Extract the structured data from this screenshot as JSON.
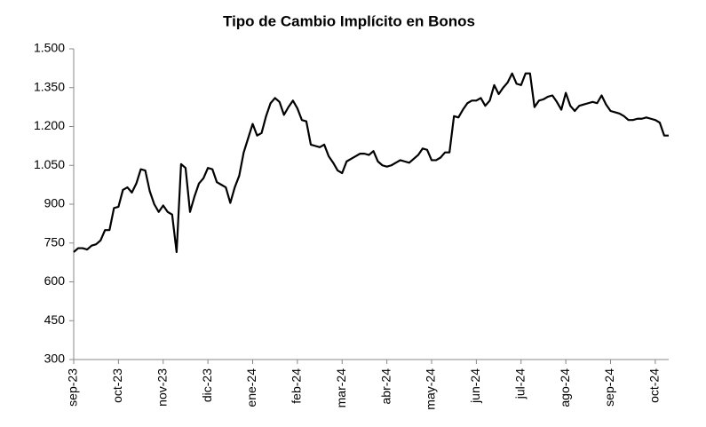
{
  "chart_data": {
    "type": "line",
    "title": "Tipo de Cambio Implícito en Bonos",
    "categories": [
      "sep-23",
      null,
      null,
      null,
      null,
      null,
      null,
      null,
      null,
      null,
      "oct-23",
      null,
      null,
      null,
      null,
      null,
      null,
      null,
      null,
      null,
      "nov-23",
      null,
      null,
      null,
      null,
      null,
      null,
      null,
      null,
      null,
      "dic-23",
      null,
      null,
      null,
      null,
      null,
      null,
      null,
      null,
      null,
      "ene-24",
      null,
      null,
      null,
      null,
      null,
      null,
      null,
      null,
      null,
      "feb-24",
      null,
      null,
      null,
      null,
      null,
      null,
      null,
      null,
      null,
      "mar-24",
      null,
      null,
      null,
      null,
      null,
      null,
      null,
      null,
      null,
      "abr-24",
      null,
      null,
      null,
      null,
      null,
      null,
      null,
      null,
      null,
      "may-24",
      null,
      null,
      null,
      null,
      null,
      null,
      null,
      null,
      null,
      "jun-24",
      null,
      null,
      null,
      null,
      null,
      null,
      null,
      null,
      null,
      "jul-24",
      null,
      null,
      null,
      null,
      null,
      null,
      null,
      null,
      null,
      "ago-24",
      null,
      null,
      null,
      null,
      null,
      null,
      null,
      null,
      null,
      "sep-24",
      null,
      null,
      null,
      null,
      null,
      null,
      null,
      null,
      null,
      "oct-24",
      null,
      null,
      null
    ],
    "series": [
      {
        "name": "Tipo de Cambio Implícito",
        "color": "#000000",
        "values": [
          715,
          730,
          730,
          725,
          740,
          745,
          760,
          800,
          800,
          885,
          890,
          955,
          965,
          945,
          980,
          1035,
          1030,
          950,
          900,
          870,
          895,
          870,
          860,
          715,
          1055,
          1040,
          870,
          930,
          980,
          1000,
          1040,
          1035,
          985,
          975,
          965,
          905,
          965,
          1010,
          1100,
          1155,
          1210,
          1165,
          1175,
          1240,
          1290,
          1310,
          1295,
          1245,
          1275,
          1300,
          1270,
          1225,
          1220,
          1130,
          1125,
          1120,
          1130,
          1085,
          1060,
          1030,
          1020,
          1065,
          1075,
          1085,
          1095,
          1095,
          1090,
          1105,
          1065,
          1050,
          1045,
          1050,
          1060,
          1070,
          1065,
          1060,
          1075,
          1090,
          1115,
          1110,
          1070,
          1070,
          1080,
          1100,
          1100,
          1240,
          1235,
          1265,
          1290,
          1300,
          1300,
          1310,
          1280,
          1300,
          1360,
          1325,
          1350,
          1370,
          1405,
          1365,
          1360,
          1405,
          1405,
          1275,
          1300,
          1305,
          1315,
          1320,
          1295,
          1265,
          1330,
          1280,
          1260,
          1280,
          1285,
          1290,
          1295,
          1290,
          1320,
          1285,
          1260,
          1255,
          1250,
          1240,
          1225,
          1225,
          1230,
          1230,
          1235,
          1230,
          1225,
          1215,
          1165,
          1165
        ]
      }
    ],
    "ylim": [
      300,
      1500
    ],
    "yticks": [
      300,
      450,
      600,
      750,
      900,
      {
        "value": 1050,
        "label": "1.050"
      },
      {
        "value": 1200,
        "label": "1.200"
      },
      {
        "value": 1350,
        "label": "1.350"
      },
      {
        "value": 1500,
        "label": "1.500"
      }
    ],
    "grid": false
  }
}
